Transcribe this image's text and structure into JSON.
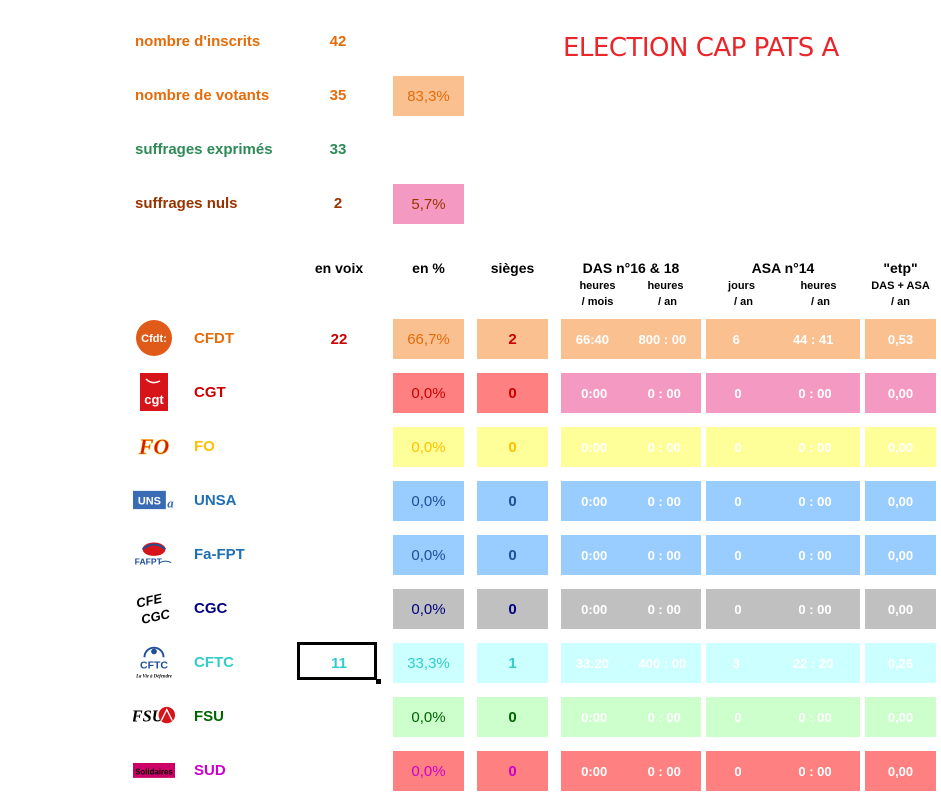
{
  "title": "ELECTION CAP PATS A",
  "stats": [
    {
      "label": "nombre d'inscrits",
      "value": "42",
      "pct": "",
      "color": "#e46c0a",
      "pct_bg": ""
    },
    {
      "label": "nombre de votants",
      "value": "35",
      "pct": "83,3%",
      "color": "#e46c0a",
      "pct_bg": "#fac090"
    },
    {
      "label": "suffrages exprimés",
      "value": "33",
      "pct": "",
      "color": "#2e8b57",
      "pct_bg": ""
    },
    {
      "label": "suffrages nuls",
      "value": "2",
      "pct": "5,7%",
      "color": "#993300",
      "pct_bg": "#f49ac2"
    }
  ],
  "headers": {
    "en_voix": "en voix",
    "en_pct": "en %",
    "sieges": "sièges",
    "das": "DAS n°16 & 18",
    "das_h_mois": "heures",
    "das_h_mois_unit": "/ mois",
    "das_h_an": "heures",
    "das_h_an_unit": "/ an",
    "asa": "ASA n°14",
    "asa_jours": "jours",
    "asa_jours_unit": "/ an",
    "asa_heures": "heures",
    "asa_heures_unit": "/ an",
    "etp": "\"etp\"",
    "etp_sub": "DAS + ASA",
    "etp_unit": "/ an"
  },
  "unions": [
    {
      "name": "CFDT",
      "logo": "CFDT",
      "color": "#e46c0a",
      "votes": "22",
      "votes_color": "#cc0000",
      "pct": "66,7%",
      "pct_color": "#e46c0a",
      "seats": "2",
      "seats_color": "#cc0000",
      "das_mois": "66:40",
      "das_an": "800 : 00",
      "asa_jours": "6",
      "asa_heures": "44 : 41",
      "etp": "0,53",
      "bg": "#fac090",
      "seats_bg": "#fac090"
    },
    {
      "name": "CGT",
      "logo": "CGT",
      "color": "#cc0000",
      "votes": "",
      "votes_color": "#cc0000",
      "pct": "0,0%",
      "pct_color": "#cc0000",
      "seats": "0",
      "seats_color": "#cc0000",
      "das_mois": "0:00",
      "das_an": "0 : 00",
      "asa_jours": "0",
      "asa_heures": "0 : 00",
      "etp": "0,00",
      "bg": "#f49ac2",
      "seats_bg": "#ff8080",
      "pct_bg": "#ff8080"
    },
    {
      "name": "FO",
      "logo": "FO",
      "color": "#ffc000",
      "votes": "",
      "votes_color": "#ffc000",
      "pct": "0,0%",
      "pct_color": "#ffc000",
      "seats": "0",
      "seats_color": "#ffc000",
      "das_mois": "0:00",
      "das_an": "0 : 00",
      "asa_jours": "0",
      "asa_heures": "0 : 00",
      "etp": "0,00",
      "bg": "#ffff99",
      "seats_bg": "#ffff99"
    },
    {
      "name": "UNSA",
      "logo": "UNSA",
      "color": "#1f6fb5",
      "votes": "",
      "votes_color": "#1f6fb5",
      "pct": "0,0%",
      "pct_color": "#1f4e99",
      "seats": "0",
      "seats_color": "#1f4e99",
      "das_mois": "0:00",
      "das_an": "0 : 00",
      "asa_jours": "0",
      "asa_heures": "0 : 00",
      "etp": "0,00",
      "bg": "#99ccff",
      "seats_bg": "#99ccff"
    },
    {
      "name": "Fa-FPT",
      "logo": "Fa-FPT",
      "color": "#1f6fb5",
      "votes": "",
      "votes_color": "#1f6fb5",
      "pct": "0,0%",
      "pct_color": "#1f4e99",
      "seats": "0",
      "seats_color": "#1f4e99",
      "das_mois": "0:00",
      "das_an": "0 : 00",
      "asa_jours": "0",
      "asa_heures": "0 : 00",
      "etp": "0,00",
      "bg": "#99ccff",
      "seats_bg": "#99ccff"
    },
    {
      "name": "CGC",
      "logo": "CGC",
      "color": "#000080",
      "votes": "",
      "votes_color": "#000080",
      "pct": "0,0%",
      "pct_color": "#000080",
      "seats": "0",
      "seats_color": "#000080",
      "das_mois": "0:00",
      "das_an": "0 : 00",
      "asa_jours": "0",
      "asa_heures": "0 : 00",
      "etp": "0,00",
      "bg": "#c0c0c0",
      "seats_bg": "#c0c0c0"
    },
    {
      "name": "CFTC",
      "logo": "CFTC",
      "color": "#33cccc",
      "votes": "11",
      "votes_color": "#33cccc",
      "pct": "33,3%",
      "pct_color": "#33cccc",
      "seats": "1",
      "seats_color": "#33cccc",
      "das_mois": "33:20",
      "das_an": "400 : 00",
      "asa_jours": "3",
      "asa_heures": "22 : 20",
      "etp": "0,26",
      "bg": "#ccffff",
      "seats_bg": "#ccffff"
    },
    {
      "name": "FSU",
      "logo": "FSU",
      "color": "#006600",
      "votes": "",
      "votes_color": "#006600",
      "pct": "0,0%",
      "pct_color": "#006600",
      "seats": "0",
      "seats_color": "#006600",
      "das_mois": "0:00",
      "das_an": "0 : 00",
      "asa_jours": "0",
      "asa_heures": "0 : 00",
      "etp": "0,00",
      "bg": "#ccffcc",
      "seats_bg": "#ccffcc"
    },
    {
      "name": "SUD",
      "logo": "Solidaires",
      "color": "#cc00cc",
      "votes": "",
      "votes_color": "#cc00cc",
      "pct": "0,0%",
      "pct_color": "#cc00cc",
      "seats": "0",
      "seats_color": "#cc00cc",
      "das_mois": "0:00",
      "das_an": "0 : 00",
      "asa_jours": "0",
      "asa_heures": "0 : 00",
      "etp": "0,00",
      "bg": "#ff8080",
      "seats_bg": "#ff8080"
    }
  ]
}
